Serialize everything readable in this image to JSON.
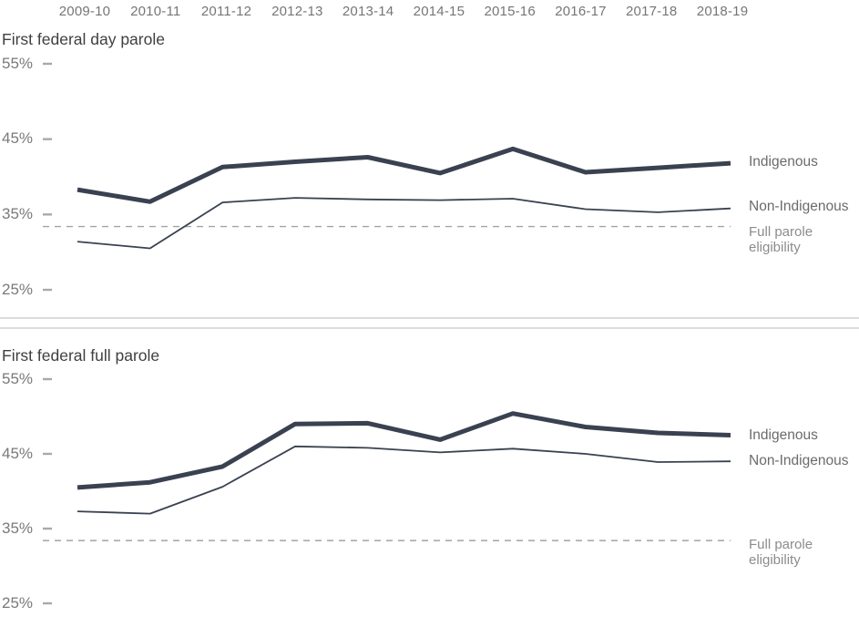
{
  "figure": {
    "kind": "two stacked line charts",
    "x_axis_position": "top",
    "y_unit": "%"
  },
  "chart_data": [
    {
      "type": "line",
      "title": "First federal day parole",
      "categories": [
        "2009-10",
        "2010-11",
        "2011-12",
        "2012-13",
        "2013-14",
        "2014-15",
        "2015-16",
        "2016-17",
        "2017-18",
        "2018-19"
      ],
      "ylim": [
        25,
        55
      ],
      "y_ticks": [
        55,
        45,
        35,
        25
      ],
      "y_tick_labels": [
        "55%",
        "45%",
        "35%",
        "25%"
      ],
      "grid": false,
      "legend_position": "right",
      "series": [
        {
          "name": "Indigenous",
          "style": "thick",
          "values": [
            38.3,
            36.7,
            41.3,
            42.0,
            42.6,
            40.5,
            43.7,
            40.6,
            41.2,
            41.8
          ]
        },
        {
          "name": "Non-Indigenous",
          "style": "thin",
          "values": [
            31.4,
            30.5,
            36.6,
            37.2,
            37.0,
            36.9,
            37.1,
            35.7,
            35.3,
            35.8
          ]
        }
      ],
      "reference": {
        "label": "Full parole eligibility",
        "label_lines": [
          "Full parole",
          "eligibility"
        ],
        "value": 33.4,
        "style": "dashed"
      }
    },
    {
      "type": "line",
      "title": "First federal full parole",
      "categories": [
        "2009-10",
        "2010-11",
        "2011-12",
        "2012-13",
        "2013-14",
        "2014-15",
        "2015-16",
        "2016-17",
        "2017-18",
        "2018-19"
      ],
      "ylim": [
        25,
        55
      ],
      "y_ticks": [
        55,
        45,
        35,
        25
      ],
      "y_tick_labels": [
        "55%",
        "45%",
        "35%",
        "25%"
      ],
      "grid": false,
      "legend_position": "right",
      "series": [
        {
          "name": "Indigenous",
          "style": "thick",
          "values": [
            40.5,
            41.2,
            43.3,
            49.0,
            49.1,
            46.9,
            50.4,
            48.6,
            47.8,
            47.5
          ]
        },
        {
          "name": "Non-Indigenous",
          "style": "thin",
          "values": [
            37.3,
            37.0,
            40.6,
            46.0,
            45.8,
            45.2,
            45.7,
            45.0,
            43.9,
            44.0
          ]
        }
      ],
      "reference": {
        "label": "Full parole eligibility",
        "label_lines": [
          "Full parole",
          "eligibility"
        ],
        "value": 33.4,
        "style": "dashed"
      }
    }
  ],
  "colors": {
    "series_line": "#3a4150",
    "reference_dashed": "#a3a3a3",
    "axis_text": "#767676",
    "title_text": "#3f3f3f",
    "legend_text": "#6b6b6b",
    "reference_text": "#8c8c8c",
    "divider": "#dcdcdc"
  }
}
